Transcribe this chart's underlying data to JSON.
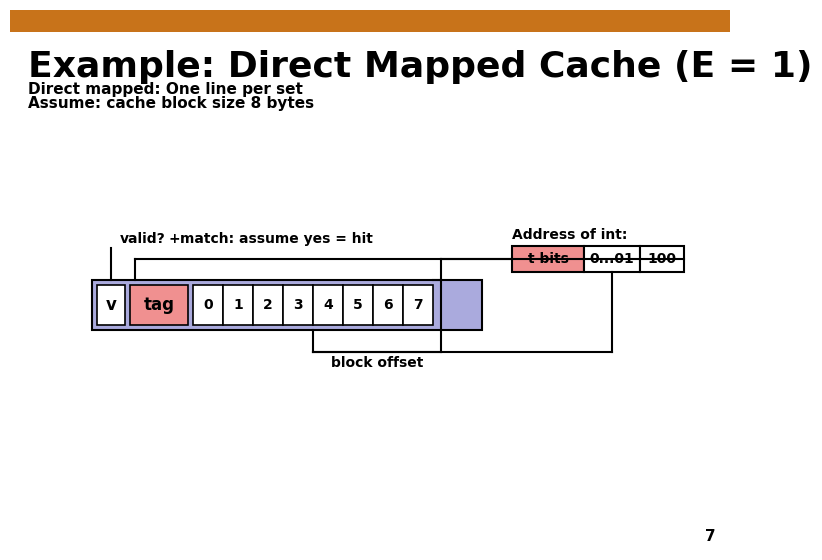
{
  "title": "Example: Direct Mapped Cache (E = 1)",
  "subtitle_line1": "Direct mapped: One line per set",
  "subtitle_line2": "Assume: cache block size 8 bytes",
  "header_bar_color": "#c8731a",
  "background_color": "#ffffff",
  "title_color": "#000000",
  "title_fontsize": 26,
  "subtitle_fontsize": 11,
  "valid_label": "valid?",
  "plus_label": "+",
  "match_label": "match: assume yes = hit",
  "v_box_color": "#ffffff",
  "tag_box_color": "#f09090",
  "cache_outer_color": "#aaaadd",
  "data_box_color": "#ffffff",
  "data_labels": [
    "0",
    "1",
    "2",
    "3",
    "4",
    "5",
    "6",
    "7"
  ],
  "address_header": "Address of int:",
  "addr_tbits_label": "t bits",
  "addr_tbits_color": "#f09090",
  "addr_01_label": "0...01",
  "addr_100_label": "100",
  "addr_box_color": "#ffffff",
  "block_offset_label": "block offset",
  "page_number": "7"
}
